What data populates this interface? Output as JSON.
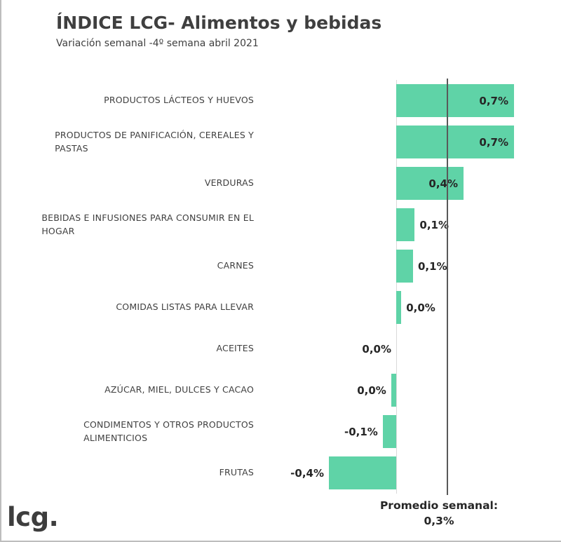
{
  "page": {
    "logo_text": "lcg."
  },
  "chart_data": {
    "type": "bar",
    "orientation": "horizontal",
    "title": "ÍNDICE LCG- Alimentos y bebidas",
    "subtitle": "Variación semanal -4º semana abril 2021",
    "unit": "%",
    "bar_color": "#5fd3a7",
    "axis_color": "#d9d9d9",
    "xlim": [
      -0.55,
      0.85
    ],
    "grid": false,
    "legend": "none",
    "reference_line": {
      "value": 0.3,
      "label": "Promedio semanal:",
      "value_label": "0,3%",
      "color": "#595959"
    },
    "categories": [
      "PRODUCTOS LÁCTEOS Y HUEVOS",
      "PRODUCTOS DE PANIFICACIÓN, CEREALES Y PASTAS",
      "VERDURAS",
      "BEBIDAS E INFUSIONES PARA CONSUMIR EN EL HOGAR",
      "CARNES",
      "COMIDAS LISTAS PARA LLEVAR",
      "ACEITES",
      "AZÚCAR, MIEL, DULCES Y CACAO",
      "CONDIMENTOS Y OTROS PRODUCTOS ALIMENTICIOS",
      "FRUTAS"
    ],
    "category_lines": [
      [
        "PRODUCTOS LÁCTEOS Y HUEVOS"
      ],
      [
        "PRODUCTOS DE PANIFICACIÓN, CEREALES Y",
        "PASTAS"
      ],
      [
        "VERDURAS"
      ],
      [
        "BEBIDAS E INFUSIONES PARA CONSUMIR EN EL",
        "HOGAR"
      ],
      [
        "CARNES"
      ],
      [
        "COMIDAS LISTAS PARA LLEVAR"
      ],
      [
        "ACEITES"
      ],
      [
        "AZÚCAR, MIEL, DULCES Y CACAO"
      ],
      [
        "CONDIMENTOS Y OTROS PRODUCTOS",
        "ALIMENTICIOS"
      ],
      [
        "FRUTAS"
      ]
    ],
    "values": [
      0.7,
      0.7,
      0.4,
      0.1,
      0.1,
      0.0,
      0.0,
      0.0,
      -0.1,
      -0.4
    ],
    "bar_values": [
      0.7,
      0.7,
      0.4,
      0.11,
      0.1,
      0.03,
      0.0,
      -0.03,
      -0.08,
      -0.4
    ],
    "value_labels": [
      "0,7%",
      "0,7%",
      "0,4%",
      "0,1%",
      "0,1%",
      "0,0%",
      "0,0%",
      "0,0%",
      "-0,1%",
      "-0,4%"
    ]
  }
}
